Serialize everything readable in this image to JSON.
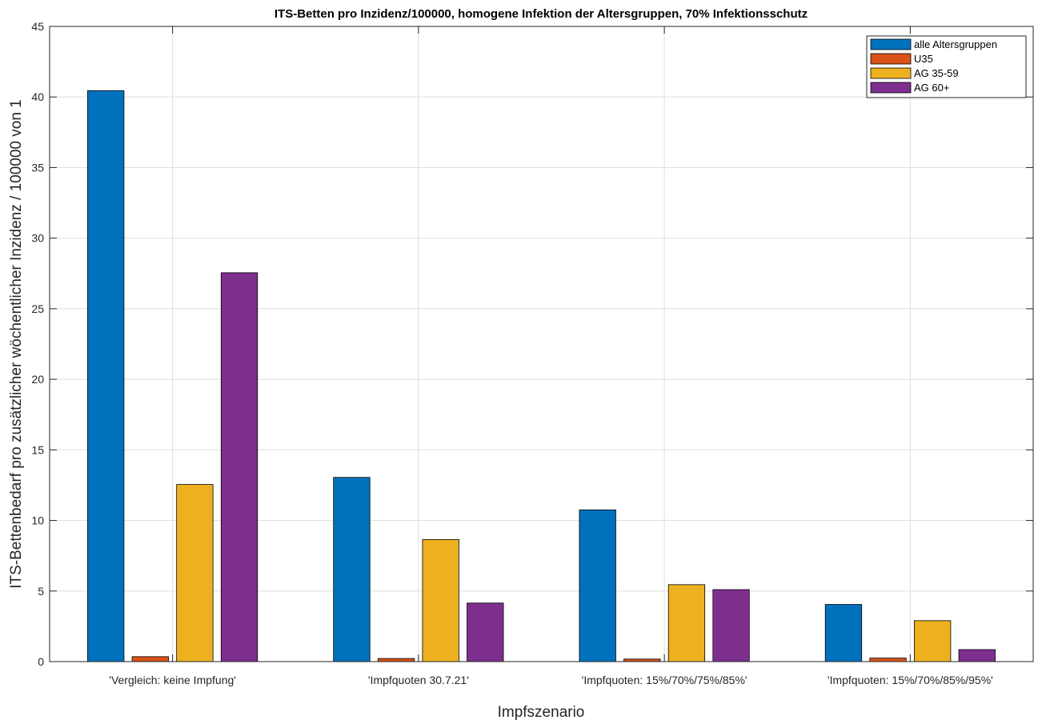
{
  "chart_data": {
    "type": "bar",
    "title": "ITS-Betten pro Inzidenz/100000, homogene Infektion der Altersgruppen, 70% Infektionsschutz",
    "xlabel": "Impfszenario",
    "ylabel": "ITS-Bettenbedarf pro zusätzlicher wöchentlicher Inzidenz / 100000 von 1",
    "ylim": [
      0,
      45
    ],
    "yticks": [
      "0",
      "5",
      "10",
      "15",
      "20",
      "25",
      "30",
      "35",
      "40",
      "45"
    ],
    "grid": true,
    "legend_position": "top-right",
    "categories": [
      "'Vergleich: keine Impfung'",
      "'Impfquoten 30.7.21'",
      "'Impfquoten: 15%/70%/75%/85%'",
      "'Impfquoten: 15%/70%/85%/95%'"
    ],
    "series": [
      {
        "name": "alle  Altersgruppen",
        "color": "#0072bd",
        "values": [
          40.45,
          13.05,
          10.75,
          4.05
        ]
      },
      {
        "name": "U35",
        "color": "#d95319",
        "values": [
          0.35,
          0.22,
          0.18,
          0.25
        ]
      },
      {
        "name": "AG 35-59",
        "color": "#edb120",
        "values": [
          12.55,
          8.65,
          5.45,
          2.9
        ]
      },
      {
        "name": "AG 60+",
        "color": "#7e2f8e",
        "values": [
          27.55,
          4.15,
          5.1,
          0.85
        ]
      }
    ]
  }
}
